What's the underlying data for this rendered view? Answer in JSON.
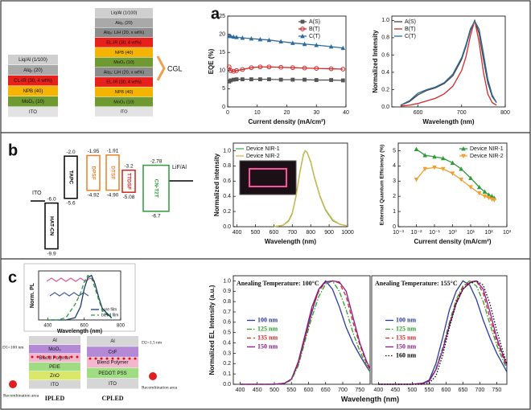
{
  "panel_labels": [
    "a",
    "b",
    "c"
  ],
  "device_a": {
    "stack1": [
      {
        "text": "Liq/Al (1/100)",
        "color": "#cfcfcf"
      },
      {
        "text": "Alq₃ (20)",
        "color": "#a9a9a9"
      },
      {
        "text": "CL-IR (30, 4 wt%)",
        "color": "#e8201c"
      },
      {
        "text": "NPB (40)",
        "color": "#f5b400"
      },
      {
        "text": "MoO₃ (10)",
        "color": "#6f9a32"
      },
      {
        "text": "ITO",
        "color": "#e3e3e3"
      }
    ],
    "stack2": [
      {
        "text": "Liq/Al (1/100)",
        "color": "#cfcfcf"
      },
      {
        "text": "Alq₃ (20)",
        "color": "#a9a9a9"
      },
      {
        "text": "Alq₃: LiH (20, x wt%)",
        "color": "#8c8c8c"
      },
      {
        "text": "EL-IR (30, 4 wt%)",
        "color": "#e8201c"
      },
      {
        "text": "NPB (40)",
        "color": "#f5b400"
      },
      {
        "text": "MoO₃ (10)",
        "color": "#6f9a32"
      },
      {
        "text": "Alq₃: LiH (20, x wt%)",
        "color": "#8c8c8c"
      },
      {
        "text": "EL-IR (30, 4 wt%)",
        "color": "#e8201c"
      },
      {
        "text": "NPB (40)",
        "color": "#f5b400"
      },
      {
        "text": "MoO₃ (10)",
        "color": "#6f9a32"
      },
      {
        "text": "ITO",
        "color": "#e3e3e3"
      }
    ],
    "cgl": "CGL"
  },
  "energy_b": {
    "left": "ITO",
    "right": "LiF/Al",
    "layers": [
      {
        "label": "HAT-CN",
        "color": "#000000",
        "levels": [
          {
            "value": -6,
            "label": "-6.0"
          },
          {
            "value": -9.9,
            "label": "-9.9"
          }
        ]
      },
      {
        "label": "TAPC",
        "color": "#000000",
        "levels": [
          {
            "value": -2,
            "label": "-2.0"
          },
          {
            "value": -5.6,
            "label": "-5.6"
          }
        ]
      },
      {
        "label": "DPSF",
        "color": "#f07f22",
        "levels": [
          {
            "value": -1.95,
            "label": "-1.95"
          },
          {
            "value": -4.92,
            "label": "-4.92"
          }
        ]
      },
      {
        "label": "DTSF",
        "color": "#f07f22",
        "levels": [
          {
            "value": -1.91,
            "label": "-1.91"
          },
          {
            "value": -4.9,
            "label": "-4.90"
          }
        ]
      },
      {
        "label": "TTDSF",
        "color": "#d0241c",
        "levels": [
          {
            "value": -3.2,
            "label": "-3.2"
          },
          {
            "value": -5.08,
            "label": "-5.08"
          }
        ]
      },
      {
        "label": "CN-T2T",
        "color": "#2e9a3a",
        "levels": [
          {
            "value": -2.78,
            "label": "-2.78"
          },
          {
            "value": -6.7,
            "label": "-6.7"
          }
        ]
      }
    ]
  },
  "device_c": {
    "ipled": {
      "name": "IPLED",
      "thickness": "D1=100 nm",
      "recombination": "Recombination area",
      "layers": [
        {
          "text": "Al",
          "color": "#d6d6d6"
        },
        {
          "text": "MoO₃",
          "color": "#b48ad6"
        },
        {
          "text": "Blend Polymer",
          "color": "#f3b6cf"
        },
        {
          "text": "PEIE",
          "color": "#9fdc82"
        },
        {
          "text": "ZnO",
          "color": "#d9e86a"
        },
        {
          "text": "ITO",
          "color": "#d6d6d6"
        }
      ]
    },
    "cpled": {
      "name": "CPLED",
      "thickness": "D2=1.5 nm",
      "recombination": "Recombination area",
      "layers": [
        {
          "text": "Al",
          "color": "#d6d6d6"
        },
        {
          "text": "CsF",
          "color": "#b48ad6"
        },
        {
          "text": "Blend Polymer",
          "color": "#f3b6cf"
        },
        {
          "text": "PEDOT: PSS",
          "color": "#9fdc82"
        },
        {
          "text": "ITO",
          "color": "#d6d6d6"
        }
      ]
    }
  },
  "chart_data": [
    {
      "type": "line",
      "markers": true,
      "xlabel": "Current density (mA/cm²)",
      "ylabel": "EQE (%)",
      "x": [
        0.5,
        1,
        2,
        3,
        5,
        8,
        11,
        14,
        18,
        22,
        26,
        30,
        35,
        39
      ],
      "xlim": [
        0,
        40
      ],
      "xticks": [
        0,
        10,
        20,
        30,
        40
      ],
      "ylim": [
        0,
        25
      ],
      "yticks": [
        0,
        5,
        10,
        15,
        20,
        25
      ],
      "legend": "upper right",
      "series": [
        {
          "name": "A(S)",
          "color": "#555555",
          "marker": "square",
          "values": [
            7,
            7.3,
            7.5,
            7.6,
            7.6,
            7.6,
            7.6,
            7.6,
            7.5,
            7.5,
            7.5,
            7.4,
            7.4,
            7.3
          ]
        },
        {
          "name": "B(T)",
          "color": "#d62728",
          "marker": "circle",
          "values": [
            11,
            10,
            9.8,
            10,
            10.3,
            10.8,
            11,
            11,
            10.9,
            10.8,
            10.7,
            10.6,
            10.5,
            10.4
          ]
        },
        {
          "name": "C(T)",
          "color": "#2e6a9a",
          "marker": "triangle",
          "values": [
            19.5,
            19.5,
            19.3,
            19.2,
            19,
            18.8,
            18.6,
            18.4,
            18,
            17.6,
            17.3,
            17,
            16.6,
            16.2
          ]
        }
      ]
    },
    {
      "type": "line",
      "xlabel": "Wavelength (nm)",
      "ylabel": "Normalized Intensity",
      "x": [
        560,
        580,
        600,
        620,
        640,
        660,
        680,
        700,
        710,
        720,
        730,
        740,
        750,
        760,
        770,
        780
      ],
      "xlim": [
        540,
        800
      ],
      "xticks": [
        600,
        700,
        800
      ],
      "ylim": [
        0,
        1.05
      ],
      "yticks": [
        {
          "value": 0,
          "label": "0.0"
        },
        0.2,
        0.4,
        0.6,
        0.8,
        {
          "value": 1,
          "label": "1.0"
        }
      ],
      "legend": "upper left",
      "series": [
        {
          "name": "A(S)",
          "color": "#444444",
          "values": [
            0.02,
            0.06,
            0.14,
            0.19,
            0.22,
            0.27,
            0.36,
            0.55,
            0.7,
            0.88,
            1.0,
            0.85,
            0.55,
            0.28,
            0.12,
            0.05
          ]
        },
        {
          "name": "B(T)",
          "color": "#d62728",
          "values": [
            0.01,
            0.02,
            0.04,
            0.07,
            0.1,
            0.15,
            0.24,
            0.42,
            0.58,
            0.82,
            1.0,
            0.75,
            0.4,
            0.15,
            0.05,
            0.02
          ]
        },
        {
          "name": "C(T)",
          "color": "#2e6a9a",
          "values": [
            0.02,
            0.07,
            0.16,
            0.2,
            0.23,
            0.28,
            0.38,
            0.57,
            0.72,
            0.9,
            0.99,
            0.9,
            0.62,
            0.32,
            0.14,
            0.05
          ]
        }
      ]
    },
    {
      "type": "line",
      "xlabel": "Wavelength (nm)",
      "ylabel": "Normalized intensity",
      "x": [
        600,
        650,
        680,
        700,
        720,
        740,
        760,
        770,
        780,
        800,
        820,
        850,
        880,
        920,
        960,
        1000
      ],
      "xlim": [
        380,
        1000
      ],
      "xticks": [
        400,
        500,
        600,
        700,
        800,
        900,
        1000
      ],
      "ylim": [
        0,
        1.1
      ],
      "yticks": [
        {
          "value": 0,
          "label": "0.0"
        },
        0.2,
        0.4,
        0.6,
        0.8,
        {
          "value": 1,
          "label": "1.0"
        }
      ],
      "legend": "upper left",
      "series": [
        {
          "name": "Device NIR-1",
          "color": "#4caf50",
          "values": [
            0,
            0.02,
            0.08,
            0.18,
            0.4,
            0.7,
            0.95,
            1.0,
            0.98,
            0.85,
            0.65,
            0.4,
            0.22,
            0.08,
            0.03,
            0.01
          ]
        },
        {
          "name": "Device NIR-2",
          "color": "#d4b84a",
          "values": [
            0,
            0.02,
            0.07,
            0.17,
            0.39,
            0.69,
            0.94,
            1.0,
            0.98,
            0.86,
            0.66,
            0.41,
            0.23,
            0.09,
            0.03,
            0.01
          ]
        }
      ]
    },
    {
      "type": "line",
      "markers": true,
      "xlog": true,
      "xlabel": "Current density (mA/cm²)",
      "ylabel": "External Quantum Efficiency (%)",
      "x": [
        0.01,
        0.03,
        0.1,
        0.3,
        1,
        3,
        10,
        30,
        60,
        100,
        150,
        200
      ],
      "xlim": [
        0.001,
        1000
      ],
      "xticks": [
        {
          "value": 0.001,
          "label": "10⁻³"
        },
        {
          "value": 0.01,
          "label": "10⁻²"
        },
        {
          "value": 0.1,
          "label": "10⁻¹"
        },
        {
          "value": 1,
          "label": "10⁰"
        },
        {
          "value": 10,
          "label": "10¹"
        },
        {
          "value": 100,
          "label": "10²"
        },
        {
          "value": 1000,
          "label": "10³"
        }
      ],
      "ylim": [
        0,
        5.5
      ],
      "yticks": [
        0,
        1,
        2,
        3,
        4,
        5
      ],
      "legend": "upper right",
      "series": [
        {
          "name": "Device NIR-1",
          "color": "#2e9a3a",
          "marker": "triangle",
          "values": [
            5.1,
            4.7,
            4.6,
            4.5,
            4.2,
            3.8,
            3.2,
            2.6,
            2.3,
            2.1,
            2,
            1.9
          ]
        },
        {
          "name": "Device NIR-2",
          "color": "#f0a030",
          "marker": "down-triangle",
          "values": [
            3.1,
            3.8,
            3.9,
            3.8,
            3.5,
            3.1,
            2.6,
            2.2,
            2,
            1.9,
            1.8,
            1.75
          ]
        }
      ]
    },
    {
      "type": "line",
      "xlabel": "Wavelength (nm)",
      "ylabel": "Norm. PL",
      "x": [
        400,
        450,
        500,
        550,
        580,
        600,
        620,
        640,
        660,
        680,
        700,
        750
      ],
      "xlim": [
        350,
        800
      ],
      "xticks": [
        400,
        600,
        800
      ],
      "ylim": [
        0,
        1.1
      ],
      "legend": "lower right",
      "series": [
        {
          "name": "pure film",
          "color": "#1a3a6a",
          "values": [
            0,
            0,
            0,
            0.05,
            0.3,
            0.7,
            0.95,
            1.0,
            0.8,
            0.5,
            0.25,
            0.05
          ]
        },
        {
          "name": "blend film",
          "color": "#2e9a3a",
          "dash": "dashed",
          "values": [
            0,
            0,
            0.05,
            0.35,
            0.6,
            0.85,
            1.0,
            0.95,
            0.7,
            0.45,
            0.2,
            0.04
          ]
        }
      ]
    },
    {
      "type": "line",
      "annotation": "Anealing Temperature: 100°C",
      "xlabel": "Wavelength (nm)",
      "ylabel": "Normalized EL Intensity (a.u.)",
      "x": [
        400,
        450,
        500,
        530,
        550,
        570,
        590,
        610,
        630,
        650,
        670,
        690,
        710,
        730,
        750,
        770,
        780
      ],
      "xlim": [
        380,
        780
      ],
      "xticks": [
        400,
        450,
        500,
        550,
        600,
        650,
        700,
        750
      ],
      "ylim": [
        0,
        1.05
      ],
      "yticks": [
        {
          "value": 0,
          "label": "0.0"
        },
        0.1,
        0.2,
        0.3,
        0.4,
        0.5,
        0.6,
        0.7,
        0.8,
        0.9,
        {
          "value": 1,
          "label": "1.0"
        }
      ],
      "legend": "center left",
      "legend_text_colored": true,
      "series": [
        {
          "name": "100 nm",
          "color": "#2b3a9a",
          "values": [
            0,
            0,
            0,
            0.01,
            0.05,
            0.2,
            0.45,
            0.7,
            0.92,
            1.0,
            0.92,
            0.75,
            0.55,
            0.4,
            0.28,
            0.17,
            0.12
          ]
        },
        {
          "name": "125 nm",
          "color": "#2ca02c",
          "dash": "dashdot",
          "values": [
            0,
            0,
            0,
            0.01,
            0.04,
            0.18,
            0.42,
            0.65,
            0.85,
            0.97,
            1.0,
            0.9,
            0.72,
            0.5,
            0.32,
            0.18,
            0.12
          ]
        },
        {
          "name": "135 nm",
          "color": "#d62728",
          "dash": "dashed",
          "values": [
            0,
            0,
            0,
            0.01,
            0.05,
            0.2,
            0.45,
            0.72,
            0.9,
            0.99,
            1.0,
            0.98,
            0.85,
            0.6,
            0.38,
            0.2,
            0.14
          ]
        },
        {
          "name": "150 nm",
          "color": "#8b1a8b",
          "values": [
            0,
            0,
            0,
            0.01,
            0.05,
            0.22,
            0.48,
            0.75,
            0.92,
            0.99,
            1.0,
            0.99,
            0.9,
            0.65,
            0.4,
            0.22,
            0.15
          ]
        }
      ]
    },
    {
      "type": "line",
      "annotation": "Anealing Temperature: 155°C",
      "x": [
        400,
        450,
        500,
        530,
        550,
        570,
        590,
        610,
        630,
        650,
        670,
        690,
        710,
        730,
        750,
        770,
        780
      ],
      "xlim": [
        380,
        780
      ],
      "xticks": [
        400,
        450,
        500,
        550,
        600,
        650,
        700,
        750
      ],
      "ylim": [
        0,
        1.05
      ],
      "legend": "center left",
      "legend_text_colored": true,
      "series": [
        {
          "name": "100 nm",
          "color": "#2b3a9a",
          "values": [
            0,
            0,
            0,
            0.01,
            0.04,
            0.2,
            0.45,
            0.72,
            0.9,
            1.0,
            0.96,
            0.82,
            0.62,
            0.45,
            0.3,
            0.18,
            0.12
          ]
        },
        {
          "name": "125 nm",
          "color": "#2ca02c",
          "dash": "dashdot",
          "values": [
            0,
            0,
            0,
            0.01,
            0.03,
            0.15,
            0.35,
            0.6,
            0.82,
            0.95,
            1.0,
            0.95,
            0.8,
            0.58,
            0.38,
            0.22,
            0.15
          ]
        },
        {
          "name": "135 nm",
          "color": "#d62728",
          "dash": "dashed",
          "values": [
            0,
            0,
            0,
            0.01,
            0.03,
            0.14,
            0.33,
            0.58,
            0.8,
            0.94,
            0.99,
            1.0,
            0.88,
            0.64,
            0.42,
            0.25,
            0.17
          ]
        },
        {
          "name": "150 nm",
          "color": "#8b1a8b",
          "values": [
            0,
            0,
            0,
            0.01,
            0.03,
            0.14,
            0.33,
            0.57,
            0.78,
            0.92,
            0.98,
            1.0,
            0.92,
            0.7,
            0.45,
            0.27,
            0.18
          ]
        },
        {
          "name": "160 nm",
          "color": "#000000",
          "dash": "dotted",
          "values": [
            0,
            0,
            0,
            0,
            0.01,
            0.08,
            0.28,
            0.55,
            0.78,
            0.92,
            0.98,
            1.0,
            0.96,
            0.78,
            0.52,
            0.3,
            0.2
          ]
        }
      ]
    }
  ]
}
